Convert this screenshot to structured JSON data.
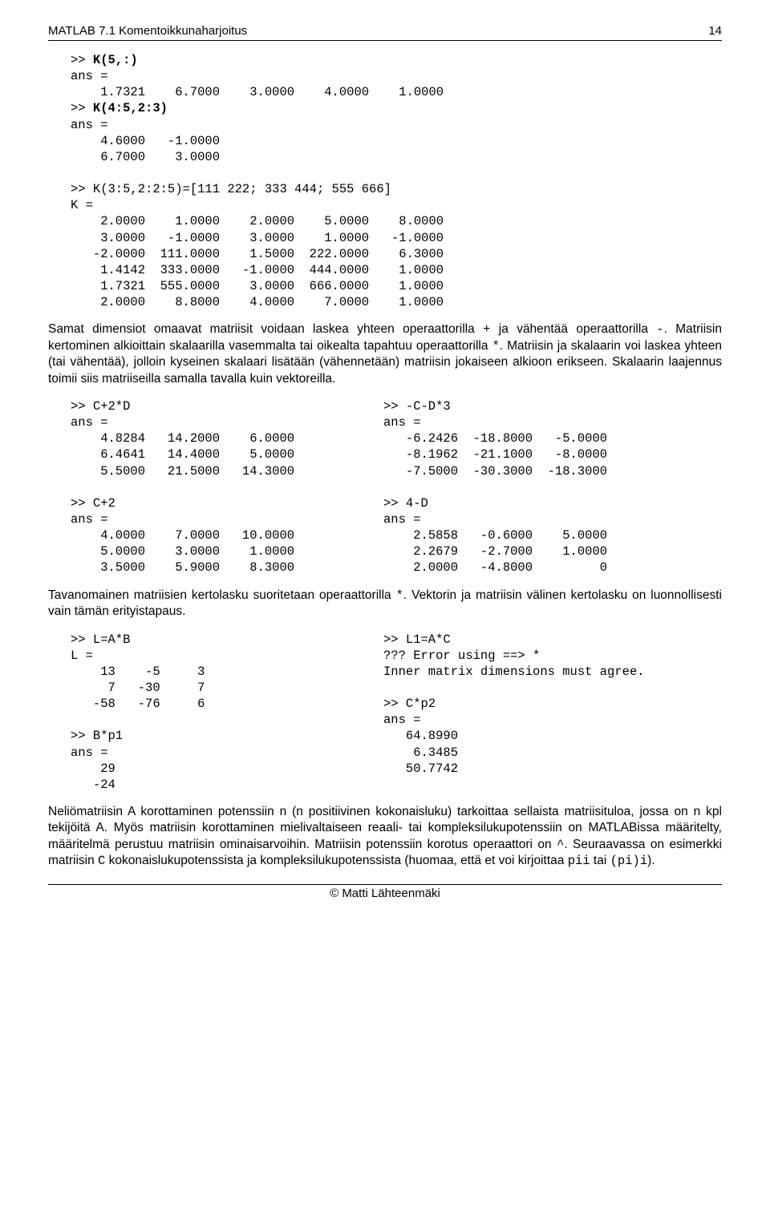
{
  "header": {
    "title": "MATLAB 7.1 Komentoikkunaharjoitus",
    "page_number": "14"
  },
  "block1": {
    "l1": ">> ",
    "l1b": "K(5,:)",
    "l2": "ans =",
    "l3": "    1.7321    6.7000    3.0000    4.0000    1.0000",
    "l4": ">> ",
    "l4b": "K(4:5,2:3)",
    "l5": "ans =",
    "l6": "    4.6000   -1.0000",
    "l7": "    6.7000    3.0000",
    "l8": "",
    "l9": ">> K(3:5,2:2:5)=[111 222; 333 444; 555 666]",
    "l10": "K =",
    "l11": "    2.0000    1.0000    2.0000    5.0000    8.0000",
    "l12": "    3.0000   -1.0000    3.0000    1.0000   -1.0000",
    "l13": "   -2.0000  111.0000    1.5000  222.0000    6.3000",
    "l14": "    1.4142  333.0000   -1.0000  444.0000    1.0000",
    "l15": "    1.7321  555.0000    3.0000  666.0000    1.0000",
    "l16": "    2.0000    8.8000    4.0000    7.0000    1.0000"
  },
  "para1_a": "Samat dimensiot omaavat matriisit voidaan laskea yhteen operaattorilla ",
  "para1_b": " ja vähentää operaattorilla ",
  "para1_c": ". Matriisin kertominen alkioittain skalaarilla vasemmalta tai oikealta tapahtuu operaattorilla ",
  "para1_d": ". Matriisin ja skalaarin voi laskea yhteen (tai vähentää), jolloin kyseinen skalaari lisätään (vähennetään) matriisin jokaiseen alkioon erikseen. Skalaarin laajennus toimii siis matriiseilla samalla tavalla kuin vektoreilla.",
  "op_plus": "+",
  "op_minus": "-",
  "op_star": "*",
  "block2": {
    "left": {
      "l1a": ">> ",
      "l1b": "C+2*D",
      "l2": "ans =",
      "l3": "    4.8284   14.2000    6.0000",
      "l4": "    6.4641   14.4000    5.0000",
      "l5": "    5.5000   21.5000   14.3000",
      "l6": "",
      "l7a": ">> ",
      "l7b": "C+2",
      "l8": "ans =",
      "l9": "    4.0000    7.0000   10.0000",
      "l10": "    5.0000    3.0000    1.0000",
      "l11": "    3.5000    5.9000    8.3000"
    },
    "right": {
      "l1a": ">> ",
      "l1b": "-C-D*3",
      "l2": "ans =",
      "l3": "   -6.2426  -18.8000   -5.0000",
      "l4": "   -8.1962  -21.1000   -8.0000",
      "l5": "   -7.5000  -30.3000  -18.3000",
      "l6": "",
      "l7a": ">> ",
      "l7b": "4-D",
      "l8": "ans =",
      "l9": "    2.5858   -0.6000    5.0000",
      "l10": "    2.2679   -2.7000    1.0000",
      "l11": "    2.0000   -4.8000         0"
    }
  },
  "para2_a": "Tavanomainen matriisien kertolasku suoritetaan operaattorilla ",
  "para2_b": ". Vektorin ja matriisin välinen kertolasku on luonnollisesti vain tämän erityistapaus.",
  "block3": {
    "left": {
      "l1a": ">> ",
      "l1b": "L=A*B",
      "l2": "L =",
      "l3": "    13    -5     3",
      "l4": "     7   -30     7",
      "l5": "   -58   -76     6",
      "l6": "",
      "l7a": ">> ",
      "l7b": "B*p1",
      "l8": "ans =",
      "l9": "    29",
      "l10": "   -24"
    },
    "right": {
      "l1a": ">> ",
      "l1b": "L1=A*C",
      "l2": "??? Error using ==> *",
      "l3": "Inner matrix dimensions must agree.",
      "l4": "",
      "l5a": ">> ",
      "l5b": "C*p2",
      "l6": "ans =",
      "l7": "   64.8990",
      "l8": "    6.3485",
      "l9": "   50.7742"
    }
  },
  "para3_a": "Neliömatriisin A korottaminen potenssiin n (n positiivinen kokonaisluku) tarkoittaa sellaista matriisituloa, jossa on n kpl tekijöitä A. Myös matriisin korottaminen mielivaltaiseen reaali- tai kompleksilukupotenssiin on MATLABissa määritelty, määritelmä perustuu matriisin ominaisarvoihin. Matriisin potenssiin korotus operaattori on ",
  "para3_b": ". Seuraavassa on esimerkki matriisin ",
  "para3_c": " kokonaislukupotenssista ja kompleksilukupotenssista (huomaa, että et voi kirjoittaa ",
  "para3_d": " tai ",
  "para3_e": ").",
  "op_caret": "^",
  "mono_C": "C",
  "mono_pii": "pii",
  "mono_pi_i": "(pi)i",
  "footer": "© Matti Lähteenmäki"
}
